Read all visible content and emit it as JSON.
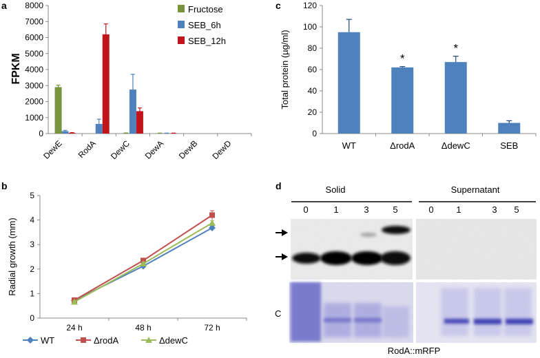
{
  "panel_labels": {
    "a": "a",
    "b": "b",
    "c": "c",
    "d": "d"
  },
  "chart_data": [
    {
      "id": "a",
      "type": "bar",
      "ylabel": "FPKM",
      "ylim": [
        0,
        8000
      ],
      "yticks": [
        0,
        1000,
        2000,
        3000,
        4000,
        5000,
        6000,
        7000,
        8000
      ],
      "categories": [
        "DewE",
        "RodA",
        "DewC",
        "DewA",
        "DewB",
        "DewD"
      ],
      "series": [
        {
          "name": "Fructose",
          "color": "#77933c",
          "values": [
            2900,
            0,
            30,
            20,
            0,
            0
          ],
          "errors": [
            120,
            0,
            10,
            10,
            0,
            0
          ]
        },
        {
          "name": "SEB_6h",
          "color": "#4f81bd",
          "values": [
            150,
            600,
            2750,
            20,
            0,
            0
          ],
          "errors": [
            50,
            300,
            950,
            10,
            0,
            0
          ]
        },
        {
          "name": "SEB_12h",
          "color": "#c0161b",
          "values": [
            40,
            6200,
            1400,
            20,
            0,
            0
          ],
          "errors": [
            20,
            650,
            200,
            10,
            0,
            0
          ]
        }
      ]
    },
    {
      "id": "b",
      "type": "line",
      "ylabel": "Radial growth (mm)",
      "ylim": [
        0,
        5
      ],
      "yticks": [
        0,
        1,
        2,
        3,
        4,
        5
      ],
      "categories": [
        "24 h",
        "48 h",
        "72 h"
      ],
      "series": [
        {
          "name": "WT",
          "color": "#4f81bd",
          "marker": "diamond",
          "values": [
            0.72,
            2.12,
            3.68
          ],
          "errors": [
            0.05,
            0.06,
            0.08
          ]
        },
        {
          "name": "ΔrodA",
          "color": "#c0504d",
          "marker": "square",
          "values": [
            0.73,
            2.35,
            4.2
          ],
          "errors": [
            0.05,
            0.06,
            0.18
          ]
        },
        {
          "name": "ΔdewC",
          "color": "#9bbb59",
          "marker": "triangle",
          "values": [
            0.66,
            2.22,
            3.88
          ],
          "errors": [
            0.05,
            0.06,
            0.1
          ]
        }
      ]
    },
    {
      "id": "c",
      "type": "bar",
      "ylabel": "Total protein (µg/ml)",
      "ylim": [
        0,
        120
      ],
      "yticks": [
        0,
        20,
        40,
        60,
        80,
        100,
        120
      ],
      "categories": [
        "WT",
        "ΔrodA",
        "ΔdewC",
        "SEB"
      ],
      "values": [
        95,
        62,
        67,
        10
      ],
      "errors": [
        12,
        0.8,
        5.5,
        2
      ],
      "significance": [
        "",
        "*",
        "*",
        ""
      ],
      "color": "#4f81bd"
    }
  ],
  "blot": {
    "group_solid": "Solid",
    "group_supernatant": "Supernatant",
    "lanes_solid": [
      "0",
      "1",
      "3",
      "5"
    ],
    "lanes_supernatant": [
      "0",
      "1",
      "3",
      "5"
    ],
    "coomassie_label": "C",
    "caption": "RodA::mRFP"
  }
}
